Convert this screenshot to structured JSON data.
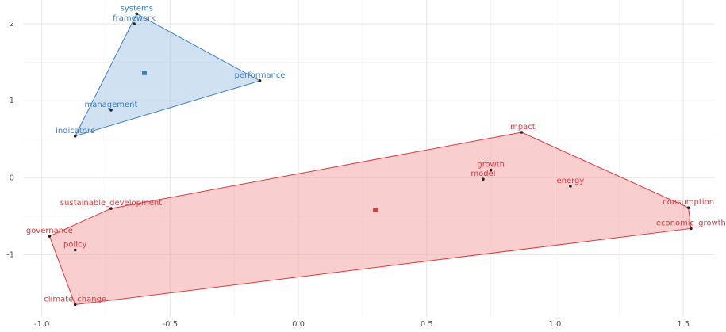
{
  "chart_data": {
    "type": "scatter",
    "grid": true,
    "xlim": [
      -1.07,
      1.62
    ],
    "ylim": [
      -1.81,
      2.31
    ],
    "xticks": [
      {
        "value": -1,
        "label": "-1.0"
      },
      -0.5,
      {
        "value": 0,
        "label": "0.0"
      },
      0.5,
      {
        "value": 1,
        "label": "1.0"
      },
      1.5
    ],
    "yticks": [
      -1,
      0,
      1,
      2
    ],
    "clusters": [
      {
        "color": "#3b7fc4",
        "fill": "#a9c8e8",
        "labels": [
          "systems",
          "framework",
          "performance",
          "management",
          "indicators"
        ],
        "x": [
          -0.63,
          -0.64,
          -0.15,
          -0.73,
          -0.87
        ],
        "y": [
          2.13,
          2.0,
          1.26,
          0.88,
          0.54
        ],
        "centroid_x": -0.6,
        "centroid_y": 1.36
      },
      {
        "color": "#e0393e",
        "fill": "#f4a6a8",
        "labels": [
          "impact",
          "growth",
          "model",
          "energy",
          "consumption",
          "economic_growth",
          "sustainable_development",
          "governance",
          "policy",
          "climate_change"
        ],
        "x": [
          0.87,
          0.75,
          0.72,
          1.06,
          1.52,
          1.53,
          -0.73,
          -0.97,
          -0.87,
          -0.87
        ],
        "y": [
          0.59,
          0.1,
          -0.02,
          -0.11,
          -0.39,
          -0.66,
          -0.4,
          -0.76,
          -0.94,
          -1.65
        ],
        "centroid_x": 0.3,
        "centroid_y": -0.42
      }
    ]
  }
}
